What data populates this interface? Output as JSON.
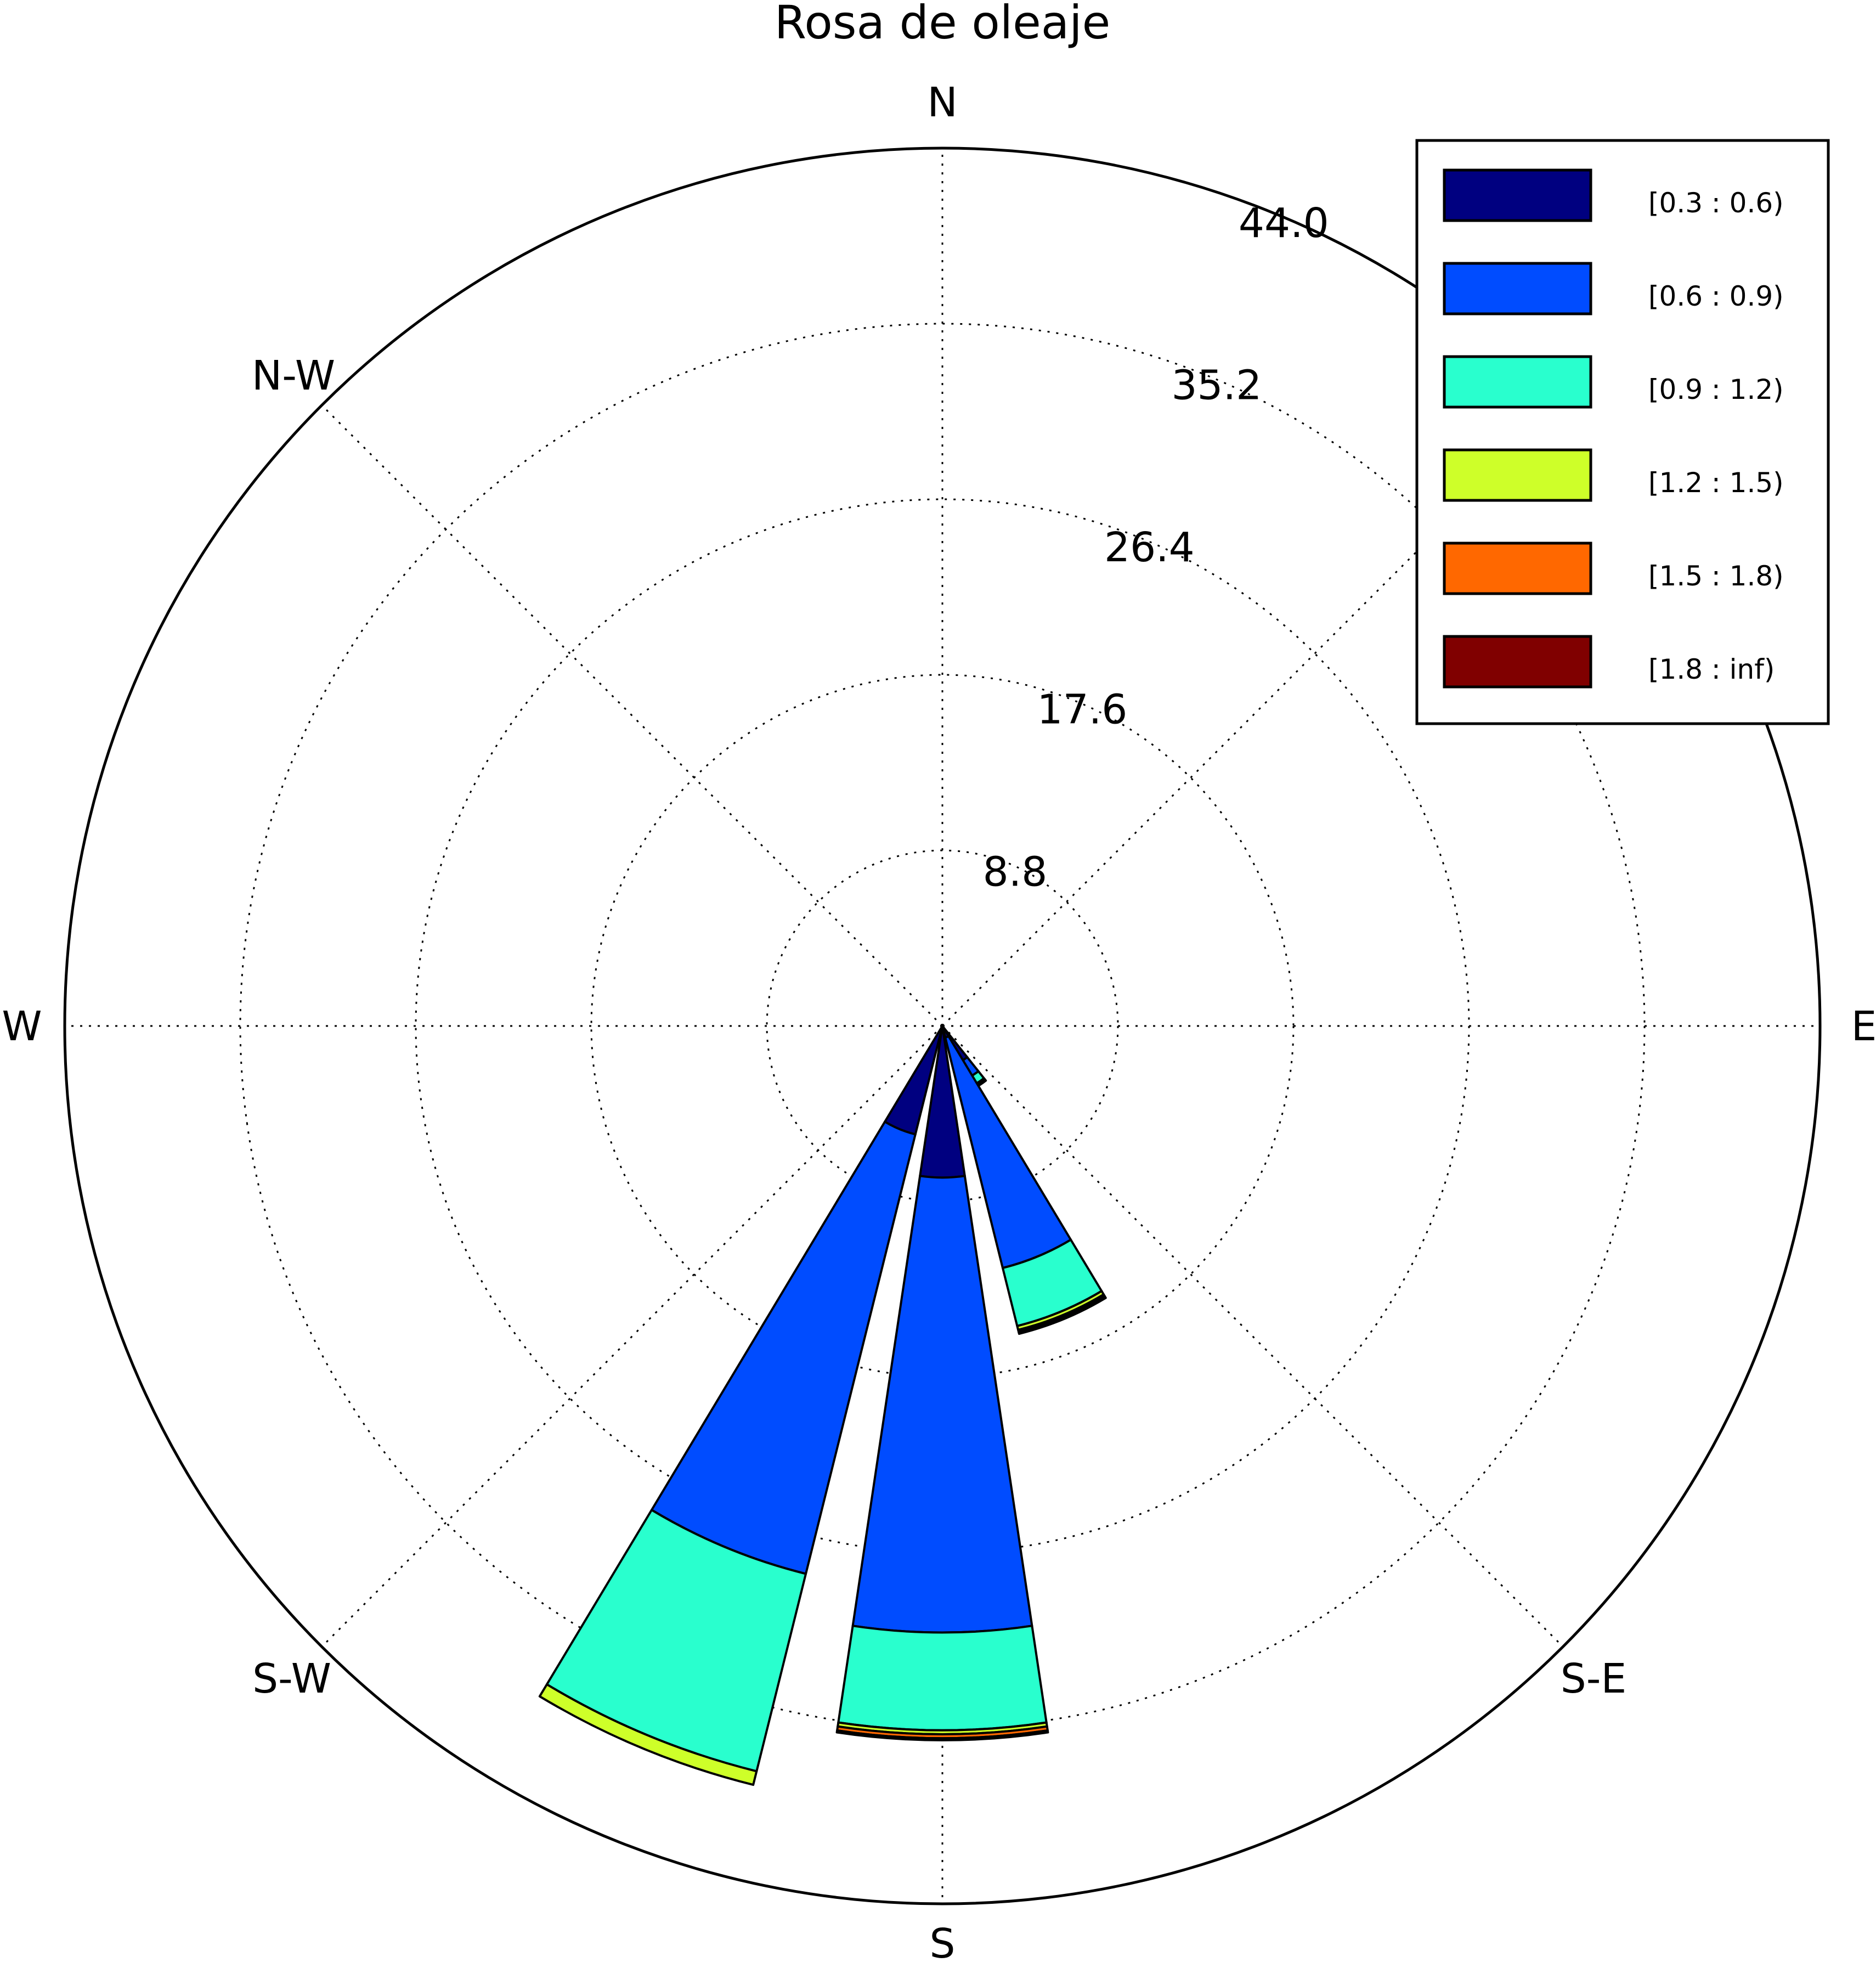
{
  "chart_data": {
    "type": "windrose",
    "title": "Rosa de oleaje",
    "directions": [
      "N",
      "N-W",
      "W",
      "S-W",
      "S",
      "S-E",
      "E"
    ],
    "radial_ticks": [
      "8.8",
      "17.6",
      "26.4",
      "35.2",
      "44.0"
    ],
    "radial_tick_values": [
      8.8,
      17.6,
      26.4,
      35.2,
      44.0
    ],
    "rmax": 44.0,
    "grid": true,
    "legend_position": "top-right",
    "bins": [
      {
        "label": "[0.3 : 0.6)",
        "color": "#000080"
      },
      {
        "label": "[0.6 : 0.9)",
        "color": "#004cff"
      },
      {
        "label": "[0.9 : 1.2)",
        "color": "#29ffce"
      },
      {
        "label": "[1.2 : 1.5)",
        "color": "#ceff29"
      },
      {
        "label": "[1.5 : 1.8)",
        "color": "#ff6800"
      },
      {
        "label": "[1.8 : inf)",
        "color": "#800000"
      }
    ],
    "sectors": [
      {
        "direction_deg": 300,
        "cumulative": [
          2.0,
          2.9,
          3.35,
          3.4,
          3.45,
          3.5
        ]
      },
      {
        "direction_deg": 292.5,
        "cumulative": [
          0.6,
          12.5,
          15.5,
          15.7,
          15.8,
          15.9
        ]
      },
      {
        "direction_deg": 270,
        "cumulative": [
          7.6,
          30.4,
          35.3,
          35.5,
          35.7,
          35.8
        ]
      },
      {
        "direction_deg": 247.5,
        "cumulative": [
          5.6,
          28.3,
          38.5,
          39.2,
          39.2,
          39.2
        ]
      }
    ]
  }
}
